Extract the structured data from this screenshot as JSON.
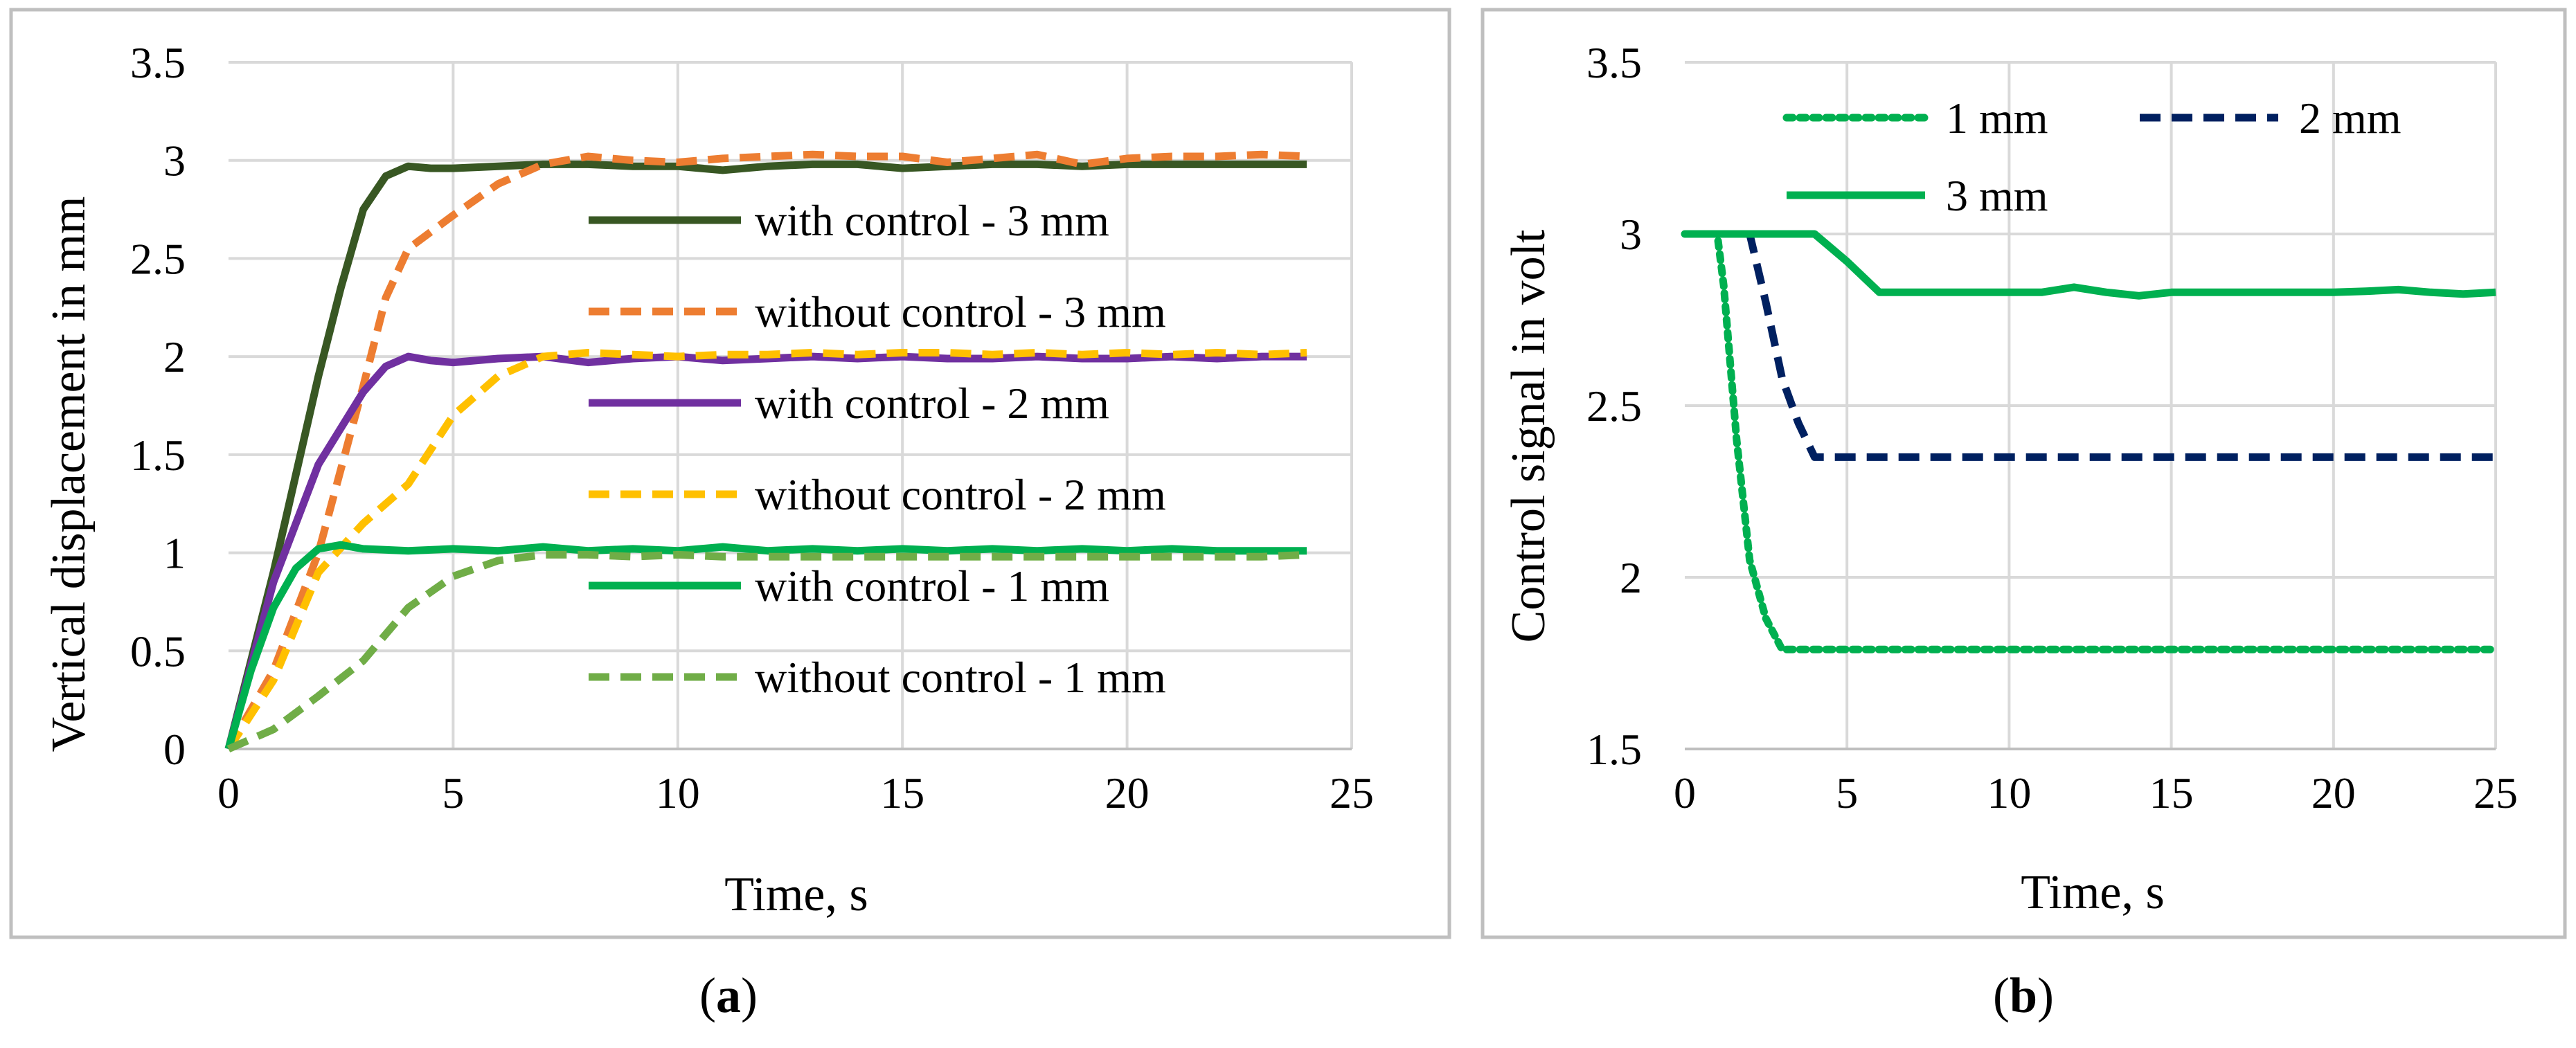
{
  "chart_data": [
    {
      "type": "line",
      "panel_label": "a",
      "title": "",
      "xlabel": "Time, s",
      "ylabel": "Vertical displacement in mm",
      "xlim": [
        0,
        25
      ],
      "ylim": [
        0,
        3.5
      ],
      "xticks": [
        0,
        5,
        10,
        15,
        20,
        25
      ],
      "yticks": [
        0,
        0.5,
        1,
        1.5,
        2,
        2.5,
        3,
        3.5
      ],
      "ytick_labels": [
        "0",
        "0.5",
        "1",
        "1.5",
        "2",
        "2.5",
        "3",
        "3.5"
      ],
      "grid": true,
      "legend_placement": "right",
      "series": [
        {
          "name": "with control - 3 mm",
          "color": "#385723",
          "dash": "solid",
          "x": [
            0,
            1,
            2,
            2.5,
            3,
            3.5,
            4,
            4.5,
            5,
            6,
            7,
            8,
            9,
            10,
            11,
            12,
            13,
            14,
            15,
            16,
            17,
            18,
            19,
            20,
            21,
            22,
            23,
            24
          ],
          "y": [
            0,
            0.9,
            1.9,
            2.35,
            2.75,
            2.92,
            2.97,
            2.96,
            2.96,
            2.97,
            2.98,
            2.98,
            2.97,
            2.97,
            2.95,
            2.97,
            2.98,
            2.98,
            2.96,
            2.97,
            2.98,
            2.98,
            2.97,
            2.98,
            2.98,
            2.98,
            2.98,
            2.98
          ]
        },
        {
          "name": "without control - 3 mm",
          "color": "#ED7D31",
          "dash": "dash",
          "x": [
            0,
            1,
            2,
            3,
            3.5,
            4,
            5,
            6,
            7,
            8,
            9,
            10,
            11,
            12,
            13,
            14,
            15,
            16,
            17,
            18,
            19,
            20,
            21,
            22,
            23,
            24
          ],
          "y": [
            0,
            0.4,
            1.0,
            1.85,
            2.3,
            2.55,
            2.72,
            2.88,
            2.98,
            3.02,
            3.0,
            2.99,
            3.01,
            3.02,
            3.03,
            3.02,
            3.02,
            2.99,
            3.01,
            3.03,
            2.98,
            3.01,
            3.02,
            3.02,
            3.03,
            3.02
          ]
        },
        {
          "name": "with control - 2 mm",
          "color": "#7030A0",
          "dash": "solid",
          "x": [
            0,
            1,
            2,
            3,
            3.5,
            4,
            4.5,
            5,
            6,
            7,
            8,
            9,
            10,
            11,
            12,
            13,
            14,
            15,
            16,
            17,
            18,
            19,
            20,
            21,
            22,
            23,
            24
          ],
          "y": [
            0,
            0.85,
            1.45,
            1.82,
            1.95,
            2.0,
            1.98,
            1.97,
            1.99,
            2.0,
            1.97,
            1.99,
            2.0,
            1.98,
            1.99,
            2.0,
            1.99,
            2.0,
            1.99,
            1.99,
            2.0,
            1.99,
            1.99,
            2.0,
            1.99,
            2.0,
            2.0
          ]
        },
        {
          "name": "without control - 2 mm",
          "color": "#FFC000",
          "dash": "dash",
          "x": [
            0,
            1,
            2,
            3,
            4,
            5,
            6,
            7,
            8,
            9,
            10,
            11,
            12,
            13,
            14,
            15,
            16,
            17,
            18,
            19,
            20,
            21,
            22,
            23,
            24
          ],
          "y": [
            0,
            0.35,
            0.9,
            1.15,
            1.35,
            1.7,
            1.9,
            2.0,
            2.02,
            2.01,
            2.0,
            2.01,
            2.01,
            2.02,
            2.01,
            2.02,
            2.02,
            2.01,
            2.02,
            2.01,
            2.02,
            2.01,
            2.02,
            2.01,
            2.02
          ]
        },
        {
          "name": "with control - 1 mm",
          "color": "#00B050",
          "dash": "solid",
          "x": [
            0,
            0.5,
            1,
            1.5,
            2,
            2.5,
            3,
            4,
            5,
            6,
            7,
            8,
            9,
            10,
            11,
            12,
            13,
            14,
            15,
            16,
            17,
            18,
            19,
            20,
            21,
            22,
            23,
            24
          ],
          "y": [
            0,
            0.4,
            0.72,
            0.92,
            1.02,
            1.04,
            1.02,
            1.01,
            1.02,
            1.01,
            1.03,
            1.01,
            1.02,
            1.01,
            1.03,
            1.01,
            1.02,
            1.01,
            1.02,
            1.01,
            1.02,
            1.01,
            1.02,
            1.01,
            1.02,
            1.01,
            1.01,
            1.01
          ]
        },
        {
          "name": "without control - 1 mm",
          "color": "#70AD47",
          "dash": "dash",
          "x": [
            0,
            1,
            2,
            3,
            4,
            5,
            6,
            7,
            8,
            9,
            10,
            11,
            12,
            13,
            14,
            15,
            16,
            17,
            18,
            19,
            20,
            21,
            22,
            23,
            24
          ],
          "y": [
            0,
            0.1,
            0.27,
            0.45,
            0.72,
            0.88,
            0.96,
            0.99,
            0.99,
            0.98,
            0.99,
            0.98,
            0.98,
            0.98,
            0.98,
            0.98,
            0.98,
            0.98,
            0.98,
            0.98,
            0.98,
            0.98,
            0.98,
            0.98,
            0.99
          ]
        }
      ]
    },
    {
      "type": "line",
      "panel_label": "b",
      "title": "",
      "xlabel": "Time, s",
      "ylabel": "Control signal in volt",
      "xlim": [
        0,
        25
      ],
      "ylim": [
        1.5,
        3.5
      ],
      "xticks": [
        0,
        5,
        10,
        15,
        20,
        25
      ],
      "yticks": [
        1.5,
        2,
        2.5,
        3,
        3.5
      ],
      "ytick_labels": [
        "1.5",
        "2",
        "2.5",
        "3",
        "3.5"
      ],
      "grid": true,
      "legend_placement": "top",
      "series": [
        {
          "name": "1 mm",
          "color": "#00B050",
          "dash": "dot",
          "x": [
            0,
            1,
            1.2,
            1.6,
            2,
            2.5,
            3,
            4,
            25
          ],
          "y": [
            3.0,
            3.0,
            2.85,
            2.4,
            2.05,
            1.88,
            1.79,
            1.79,
            1.79
          ]
        },
        {
          "name": "2 mm",
          "color": "#002060",
          "dash": "dash",
          "x": [
            0,
            2,
            2.5,
            3,
            3.5,
            4,
            25
          ],
          "y": [
            3.0,
            3.0,
            2.8,
            2.58,
            2.45,
            2.35,
            2.35
          ]
        },
        {
          "name": "3 mm",
          "color": "#00B050",
          "dash": "solid",
          "x": [
            0,
            4,
            5,
            6,
            8,
            10,
            11,
            12,
            13,
            14,
            15,
            16,
            18,
            20,
            21,
            22,
            23,
            24,
            25
          ],
          "y": [
            3.0,
            3.0,
            2.92,
            2.83,
            2.83,
            2.83,
            2.83,
            2.845,
            2.83,
            2.82,
            2.83,
            2.83,
            2.83,
            2.83,
            2.833,
            2.838,
            2.83,
            2.825,
            2.83
          ]
        }
      ]
    }
  ]
}
